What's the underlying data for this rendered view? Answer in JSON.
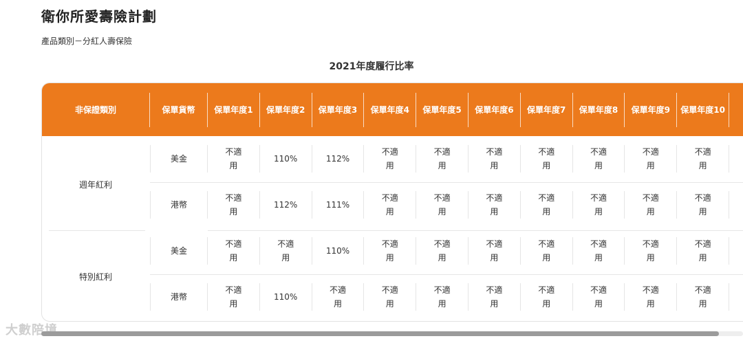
{
  "page": {
    "title": "衛你所愛壽險計劃",
    "category": "產品類別－分紅人壽保險",
    "table_title": "2021年度履行比率"
  },
  "table": {
    "headers": {
      "category": "非保證類別",
      "currency": [
        "保單貨",
        "幣"
      ],
      "years": [
        [
          "保單",
          "年度",
          "1"
        ],
        [
          "保單",
          "年度",
          "2"
        ],
        [
          "保單",
          "年度",
          "3"
        ],
        [
          "保單",
          "年度",
          "4"
        ],
        [
          "保單",
          "年度",
          "5"
        ],
        [
          "保單",
          "年度",
          "6"
        ],
        [
          "保單",
          "年度",
          "7"
        ],
        [
          "保單",
          "年度",
          "8"
        ],
        [
          "保單",
          "年度",
          "9"
        ],
        [
          "保單",
          "年度",
          "10"
        ]
      ]
    },
    "groups": [
      {
        "name": "週年紅利",
        "rows": [
          {
            "currency": "美金",
            "values": [
              [
                "不適",
                "用"
              ],
              [
                "110%"
              ],
              [
                "112%"
              ],
              [
                "不適",
                "用"
              ],
              [
                "不適",
                "用"
              ],
              [
                "不適",
                "用"
              ],
              [
                "不適",
                "用"
              ],
              [
                "不適",
                "用"
              ],
              [
                "不適",
                "用"
              ],
              [
                "不適",
                "用"
              ]
            ]
          },
          {
            "currency": "港幣",
            "values": [
              [
                "不適",
                "用"
              ],
              [
                "112%"
              ],
              [
                "111%"
              ],
              [
                "不適",
                "用"
              ],
              [
                "不適",
                "用"
              ],
              [
                "不適",
                "用"
              ],
              [
                "不適",
                "用"
              ],
              [
                "不適",
                "用"
              ],
              [
                "不適",
                "用"
              ],
              [
                "不適",
                "用"
              ]
            ]
          }
        ]
      },
      {
        "name": "特別紅利",
        "rows": [
          {
            "currency": "美金",
            "values": [
              [
                "不適",
                "用"
              ],
              [
                "不適",
                "用"
              ],
              [
                "110%"
              ],
              [
                "不適",
                "用"
              ],
              [
                "不適",
                "用"
              ],
              [
                "不適",
                "用"
              ],
              [
                "不適",
                "用"
              ],
              [
                "不適",
                "用"
              ],
              [
                "不適",
                "用"
              ],
              [
                "不適",
                "用"
              ]
            ]
          },
          {
            "currency": "港幣",
            "values": [
              [
                "不適",
                "用"
              ],
              [
                "110%"
              ],
              [
                "不適",
                "用"
              ],
              [
                "不適",
                "用"
              ],
              [
                "不適",
                "用"
              ],
              [
                "不適",
                "用"
              ],
              [
                "不適",
                "用"
              ],
              [
                "不適",
                "用"
              ],
              [
                "不適",
                "用"
              ],
              [
                "不適",
                "用"
              ]
            ]
          }
        ]
      }
    ]
  },
  "watermark": "大數陪境",
  "colors": {
    "header_bg": "#ec7a1c",
    "header_text": "#ffffff"
  }
}
